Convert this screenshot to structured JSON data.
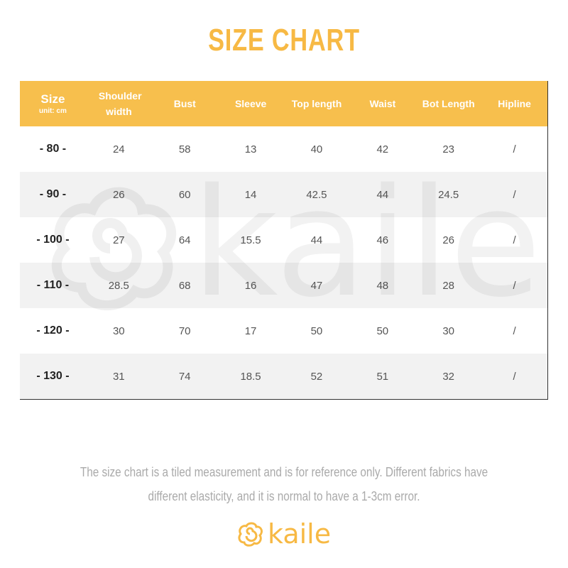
{
  "title": "SIZE CHART",
  "brand": {
    "name": "kaile",
    "color": "#f7b944",
    "watermark": "kaile"
  },
  "header": {
    "size": "Size",
    "unit": "unit: cm",
    "columns": [
      "Shoulder width",
      "Bust",
      "Sleeve",
      "Top length",
      "Waist",
      "Bot Length",
      "Hipline"
    ]
  },
  "rows": [
    {
      "size": "- 80 -",
      "values": [
        "24",
        "58",
        "13",
        "40",
        "42",
        "23",
        "/"
      ]
    },
    {
      "size": "- 90 -",
      "values": [
        "26",
        "60",
        "14",
        "42.5",
        "44",
        "24.5",
        "/"
      ]
    },
    {
      "size": "- 100 -",
      "values": [
        "27",
        "64",
        "15.5",
        "44",
        "46",
        "26",
        "/"
      ]
    },
    {
      "size": "- 110 -",
      "values": [
        "28.5",
        "68",
        "16",
        "47",
        "48",
        "28",
        "/"
      ]
    },
    {
      "size": "- 120 -",
      "values": [
        "30",
        "70",
        "17",
        "50",
        "50",
        "30",
        "/"
      ]
    },
    {
      "size": "- 130 -",
      "values": [
        "31",
        "74",
        "18.5",
        "52",
        "51",
        "32",
        "/"
      ]
    }
  ],
  "note": "The size chart is a tiled measurement and is for reference only. Different fabrics have different elasticity, and it is normal to have a 1-3cm error."
}
